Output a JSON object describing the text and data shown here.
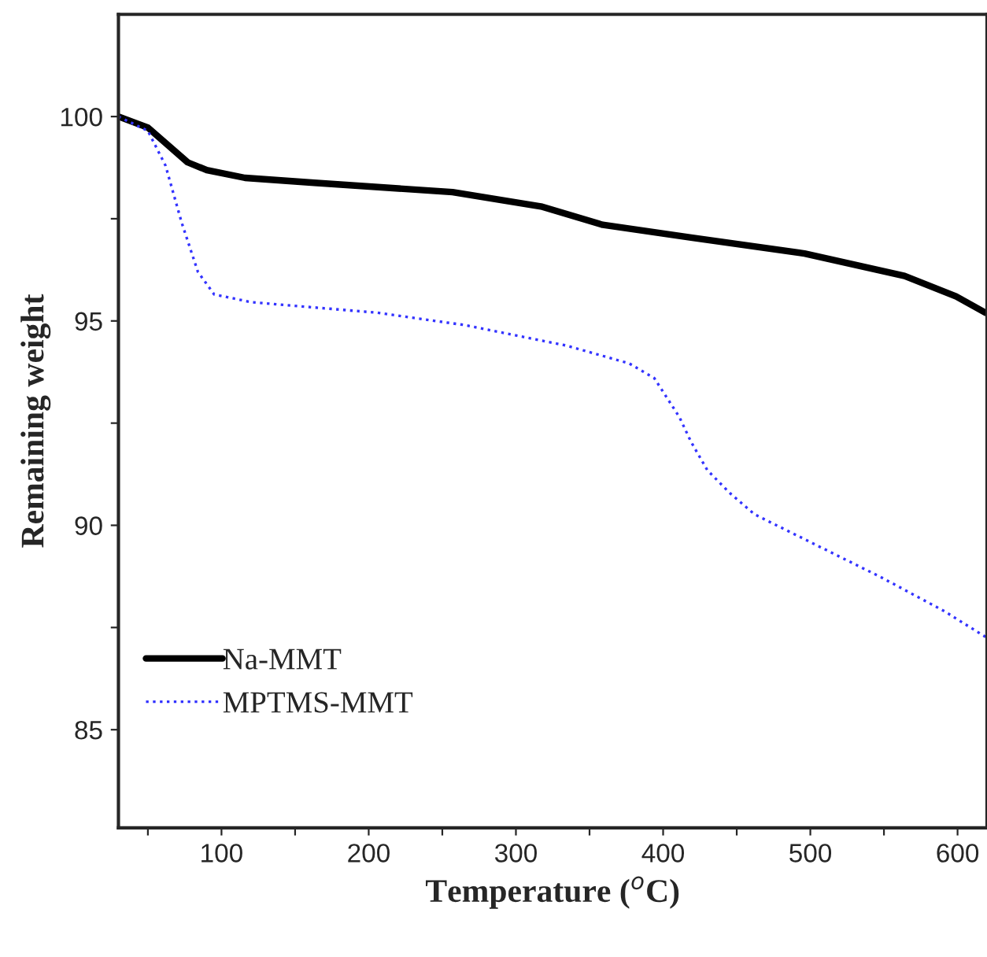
{
  "chart_data": {
    "type": "line",
    "xlabel": "Temperature ($^{o}$C)",
    "ylabel": "Remaining weight",
    "xlim": [
      30,
      620
    ],
    "ylim": [
      82.6,
      102.5
    ],
    "xticks": [
      {
        "value": 50,
        "label": null
      },
      100,
      {
        "value": 150,
        "label": null
      },
      200,
      {
        "value": 250,
        "label": null
      },
      300,
      {
        "value": 350,
        "label": null
      },
      400,
      {
        "value": 450,
        "label": null
      },
      500,
      {
        "value": 550,
        "label": null
      },
      600
    ],
    "yticks": [
      85,
      {
        "value": 87.5,
        "label": null
      },
      90,
      {
        "value": 92.5,
        "label": null
      },
      95,
      {
        "value": 97.5,
        "label": null
      },
      100
    ],
    "grid": false,
    "legend": "lower left",
    "series": [
      {
        "name": "Na-MMT",
        "color": "#000000",
        "line_style": "solid",
        "x": [
          30,
          50,
          77,
          90,
          116,
          163,
          257,
          317,
          359,
          419,
          496,
          564,
          599,
          619
        ],
        "values": [
          100,
          99.73,
          98.88,
          98.69,
          98.5,
          98.38,
          98.15,
          97.8,
          97.35,
          97.04,
          96.65,
          96.1,
          95.6,
          95.2
        ]
      },
      {
        "name": "MPTMS-MMT",
        "color": "#3333ff",
        "line_style": "dotted",
        "x": [
          30,
          50,
          62,
          73,
          84,
          95,
          120,
          206,
          265,
          334,
          377,
          394,
          411,
          419,
          430,
          445,
          462,
          505,
          548,
          591,
          619
        ],
        "values": [
          100,
          99.65,
          98.8,
          97.4,
          96.2,
          95.65,
          95.46,
          95.2,
          94.9,
          94.4,
          93.96,
          93.6,
          92.65,
          92.04,
          91.35,
          90.8,
          90.27,
          89.5,
          88.73,
          87.9,
          87.27
        ]
      }
    ]
  }
}
